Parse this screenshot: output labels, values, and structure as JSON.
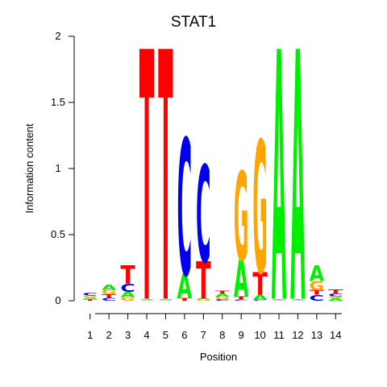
{
  "chart_data": {
    "type": "sequence-logo",
    "title": "STAT1",
    "xlabel": "Position",
    "ylabel": "Information content",
    "ylim": [
      0,
      2
    ],
    "yticks": [
      {
        "value": 0,
        "label": "0"
      },
      {
        "value": 0.5,
        "label": "0.5"
      },
      {
        "value": 1,
        "label": "1"
      },
      {
        "value": 1.5,
        "label": "1.5"
      },
      {
        "value": 2,
        "label": "2"
      }
    ],
    "positions": [
      "1",
      "2",
      "3",
      "4",
      "5",
      "6",
      "7",
      "8",
      "9",
      "10",
      "11",
      "12",
      "13",
      "14"
    ],
    "colors": {
      "A": "#00ee00",
      "C": "#0000ee",
      "G": "#ffa500",
      "T": "#ff0000"
    },
    "columns": [
      [
        {
          "l": "T",
          "h": 0.012
        },
        {
          "l": "A",
          "h": 0.012
        },
        {
          "l": "G",
          "h": 0.016
        },
        {
          "l": "C",
          "h": 0.018
        }
      ],
      [
        {
          "l": "C",
          "h": 0.02
        },
        {
          "l": "T",
          "h": 0.028
        },
        {
          "l": "G",
          "h": 0.035
        },
        {
          "l": "A",
          "h": 0.04
        }
      ],
      [
        {
          "l": "G",
          "h": 0.028
        },
        {
          "l": "A",
          "h": 0.04
        },
        {
          "l": "C",
          "h": 0.06
        },
        {
          "l": "T",
          "h": 0.14
        }
      ],
      [
        {
          "l": "A",
          "h": 0.005
        },
        {
          "l": "C",
          "h": 0.005
        },
        {
          "l": "G",
          "h": 0.005
        },
        {
          "l": "T",
          "h": 1.89
        }
      ],
      [
        {
          "l": "A",
          "h": 0.005
        },
        {
          "l": "C",
          "h": 0.005
        },
        {
          "l": "G",
          "h": 0.005
        },
        {
          "l": "T",
          "h": 1.89
        }
      ],
      [
        {
          "l": "T",
          "h": 0.02
        },
        {
          "l": "A",
          "h": 0.18
        },
        {
          "l": "C",
          "h": 1.03
        }
      ],
      [
        {
          "l": "G",
          "h": 0.008
        },
        {
          "l": "A",
          "h": 0.01
        },
        {
          "l": "T",
          "h": 0.28
        },
        {
          "l": "C",
          "h": 0.73
        }
      ],
      [
        {
          "l": "C",
          "h": 0.012
        },
        {
          "l": "G",
          "h": 0.018
        },
        {
          "l": "A",
          "h": 0.025
        },
        {
          "l": "T",
          "h": 0.02
        }
      ],
      [
        {
          "l": "C",
          "h": 0.008
        },
        {
          "l": "T",
          "h": 0.022
        },
        {
          "l": "A",
          "h": 0.28
        },
        {
          "l": "G",
          "h": 0.67
        }
      ],
      [
        {
          "l": "C",
          "h": 0.006
        },
        {
          "l": "A",
          "h": 0.04
        },
        {
          "l": "T",
          "h": 0.17
        },
        {
          "l": "G",
          "h": 1.0
        }
      ],
      [
        {
          "l": "C",
          "h": 0.005
        },
        {
          "l": "G",
          "h": 0.005
        },
        {
          "l": "T",
          "h": 0.005
        },
        {
          "l": "A",
          "h": 1.89
        }
      ],
      [
        {
          "l": "C",
          "h": 0.005
        },
        {
          "l": "G",
          "h": 0.005
        },
        {
          "l": "T",
          "h": 0.005
        },
        {
          "l": "A",
          "h": 1.89
        }
      ],
      [
        {
          "l": "C",
          "h": 0.045
        },
        {
          "l": "T",
          "h": 0.035
        },
        {
          "l": "G",
          "h": 0.07
        },
        {
          "l": "A",
          "h": 0.12
        }
      ],
      [
        {
          "l": "A",
          "h": 0.02
        },
        {
          "l": "G",
          "h": 0.015
        },
        {
          "l": "C",
          "h": 0.02
        },
        {
          "l": "T",
          "h": 0.03
        }
      ]
    ]
  }
}
